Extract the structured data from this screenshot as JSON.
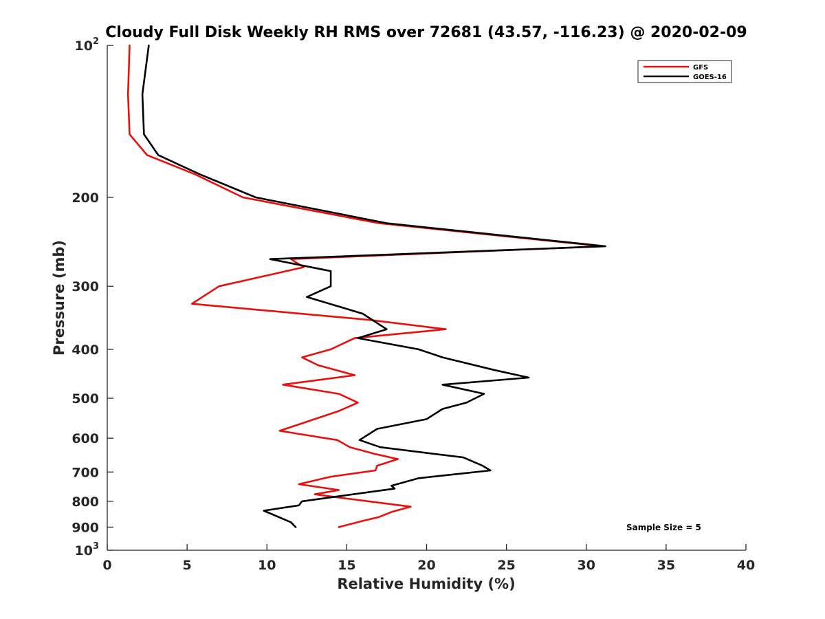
{
  "chart_data": {
    "type": "line",
    "title": "Cloudy Full Disk Weekly RH RMS over 72681 (43.57, -116.23) @ 2020-02-09",
    "xlabel": "Relative Humidity (%)",
    "ylabel": "Pressure (mb)",
    "xlim": [
      0,
      40
    ],
    "ylim": [
      100,
      1000
    ],
    "y_scale": "log",
    "y_reversed": true,
    "x_ticks": [
      "0",
      "5",
      "10",
      "15",
      "20",
      "25",
      "30",
      "35",
      "40"
    ],
    "y_ticks": [
      {
        "value": 100,
        "base": "10",
        "exp": "2"
      },
      {
        "value": 200,
        "label": "200"
      },
      {
        "value": 300,
        "label": "300"
      },
      {
        "value": 400,
        "label": "400"
      },
      {
        "value": 500,
        "label": "500"
      },
      {
        "value": 600,
        "label": "600"
      },
      {
        "value": 700,
        "label": "700"
      },
      {
        "value": 800,
        "label": "800"
      },
      {
        "value": 900,
        "label": "900"
      },
      {
        "value": 1000,
        "base": "10",
        "exp": "3"
      }
    ],
    "legend_position": "top-right",
    "annotation": "Sample Size = 5",
    "series": [
      {
        "name": "GFS",
        "color": "#e8100c",
        "points": [
          [
            1.4,
            100
          ],
          [
            1.3,
            125
          ],
          [
            1.4,
            150
          ],
          [
            2.5,
            165
          ],
          [
            5.5,
            180
          ],
          [
            8.5,
            200
          ],
          [
            17.0,
            225
          ],
          [
            31.0,
            250
          ],
          [
            11.5,
            265
          ],
          [
            12.3,
            275
          ],
          [
            7.0,
            300
          ],
          [
            5.3,
            325
          ],
          [
            16.5,
            350
          ],
          [
            21.2,
            365
          ],
          [
            15.5,
            380
          ],
          [
            14.0,
            400
          ],
          [
            12.2,
            415
          ],
          [
            13.2,
            430
          ],
          [
            15.5,
            450
          ],
          [
            11.0,
            470
          ],
          [
            14.5,
            490
          ],
          [
            15.7,
            510
          ],
          [
            14.5,
            530
          ],
          [
            10.8,
            580
          ],
          [
            14.4,
            605
          ],
          [
            15.2,
            625
          ],
          [
            16.8,
            645
          ],
          [
            18.2,
            660
          ],
          [
            16.9,
            680
          ],
          [
            16.8,
            695
          ],
          [
            14.0,
            715
          ],
          [
            12.0,
            740
          ],
          [
            14.5,
            760
          ],
          [
            13.0,
            775
          ],
          [
            15.0,
            790
          ],
          [
            19.0,
            820
          ],
          [
            17.8,
            840
          ],
          [
            17.0,
            860
          ],
          [
            16.0,
            875
          ],
          [
            14.5,
            900
          ]
        ]
      },
      {
        "name": "GOES-16",
        "color": "#000000",
        "points": [
          [
            2.6,
            100
          ],
          [
            2.2,
            125
          ],
          [
            2.3,
            150
          ],
          [
            3.2,
            165
          ],
          [
            5.8,
            180
          ],
          [
            9.3,
            200
          ],
          [
            17.5,
            225
          ],
          [
            31.2,
            250
          ],
          [
            10.2,
            265
          ],
          [
            14.0,
            280
          ],
          [
            14.0,
            300
          ],
          [
            12.5,
            315
          ],
          [
            16.0,
            340
          ],
          [
            17.5,
            365
          ],
          [
            15.7,
            380
          ],
          [
            19.5,
            400
          ],
          [
            21.0,
            415
          ],
          [
            24.3,
            440
          ],
          [
            26.4,
            455
          ],
          [
            21.0,
            470
          ],
          [
            23.6,
            490
          ],
          [
            22.5,
            510
          ],
          [
            21.0,
            525
          ],
          [
            20.0,
            550
          ],
          [
            16.9,
            575
          ],
          [
            15.8,
            605
          ],
          [
            17.1,
            625
          ],
          [
            22.3,
            655
          ],
          [
            23.5,
            680
          ],
          [
            24.0,
            695
          ],
          [
            19.5,
            720
          ],
          [
            17.8,
            745
          ],
          [
            18.0,
            755
          ],
          [
            12.2,
            800
          ],
          [
            12.0,
            815
          ],
          [
            9.8,
            835
          ],
          [
            11.5,
            880
          ],
          [
            11.8,
            900
          ]
        ]
      }
    ]
  }
}
